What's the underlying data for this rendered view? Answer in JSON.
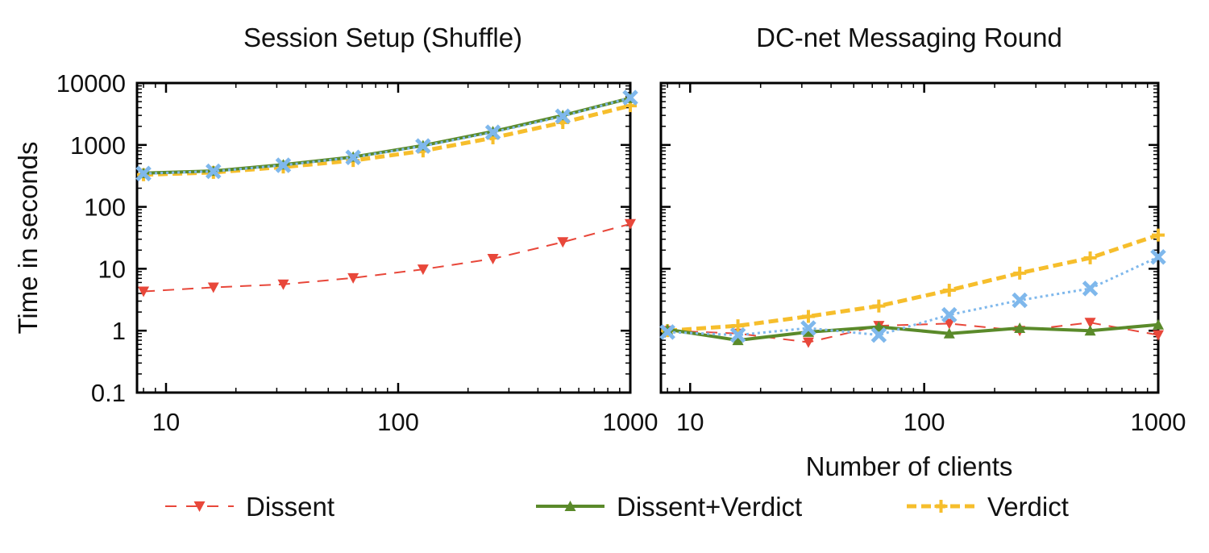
{
  "ylabel": "Time in seconds",
  "xlabel": "Number of clients",
  "colors": {
    "dissent": "#e8473a",
    "dissent_verdict": "#5a8a2a",
    "verdict": "#f6be2c",
    "hidden_series": "#7fb8ec",
    "axis": "#000000"
  },
  "legend": [
    {
      "name": "Dissent",
      "color": "#e8473a",
      "style": "dashed",
      "marker": "triangle-down"
    },
    {
      "name": "Dissent+Verdict",
      "color": "#5a8a2a",
      "style": "solid",
      "marker": "triangle-up"
    },
    {
      "name": "Verdict",
      "color": "#f6be2c",
      "style": "dashed-thick",
      "marker": "plus"
    }
  ],
  "chart_data": [
    {
      "type": "line",
      "title": "Session Setup (Shuffle)",
      "xscale": "log",
      "yscale": "log",
      "xlim": [
        7.5,
        1000
      ],
      "ylim": [
        0.1,
        10000
      ],
      "x_ticks": [
        "10",
        "100",
        "1000"
      ],
      "y_ticks": [
        "0.1",
        "1",
        "10",
        "100",
        "1000",
        "10000"
      ],
      "series": [
        {
          "name": "Dissent",
          "x": [
            8,
            16,
            32,
            64,
            128,
            256,
            512,
            1000
          ],
          "y": [
            4.3,
            5,
            5.6,
            7.1,
            9.8,
            14.5,
            27,
            53
          ]
        },
        {
          "name": "Dissent+Verdict",
          "x": [
            8,
            16,
            32,
            64,
            128,
            256,
            512,
            1000
          ],
          "y": [
            350,
            380,
            480,
            640,
            980,
            1650,
            3000,
            5700
          ]
        },
        {
          "name": "Verdict",
          "x": [
            8,
            16,
            32,
            64,
            128,
            256,
            512,
            1000
          ],
          "y": [
            330,
            360,
            440,
            560,
            800,
            1300,
            2300,
            4300
          ]
        },
        {
          "name": "",
          "x": [
            8,
            16,
            32,
            64,
            128,
            256,
            512,
            1000
          ],
          "y": [
            345,
            375,
            470,
            630,
            960,
            1600,
            2900,
            5800
          ]
        }
      ]
    },
    {
      "type": "line",
      "title": "DC-net Messaging Round",
      "xscale": "log",
      "yscale": "log",
      "xlim": [
        7.5,
        1000
      ],
      "ylim": [
        0.1,
        10000
      ],
      "x_ticks": [
        "10",
        "100",
        "1000"
      ],
      "y_ticks": [
        "0.1",
        "1",
        "10",
        "100",
        "1000",
        "10000"
      ],
      "series": [
        {
          "name": "Dissent",
          "x": [
            8,
            16,
            32,
            64,
            128,
            256,
            512,
            1000
          ],
          "y": [
            1.0,
            0.9,
            0.65,
            1.2,
            1.3,
            1.0,
            1.35,
            0.85
          ]
        },
        {
          "name": "Dissent+Verdict",
          "x": [
            8,
            16,
            32,
            64,
            128,
            256,
            512,
            1000
          ],
          "y": [
            1.05,
            0.7,
            0.95,
            1.15,
            0.9,
            1.1,
            1.0,
            1.25
          ]
        },
        {
          "name": "Verdict",
          "x": [
            8,
            16,
            32,
            64,
            128,
            256,
            512,
            1000
          ],
          "y": [
            1.0,
            1.2,
            1.7,
            2.5,
            4.5,
            8.5,
            15,
            35
          ]
        },
        {
          "name": "",
          "x": [
            8,
            16,
            32,
            64,
            128,
            256,
            512,
            1000
          ],
          "y": [
            0.95,
            0.85,
            1.1,
            0.85,
            1.8,
            3.1,
            4.8,
            15.5
          ]
        }
      ]
    }
  ]
}
